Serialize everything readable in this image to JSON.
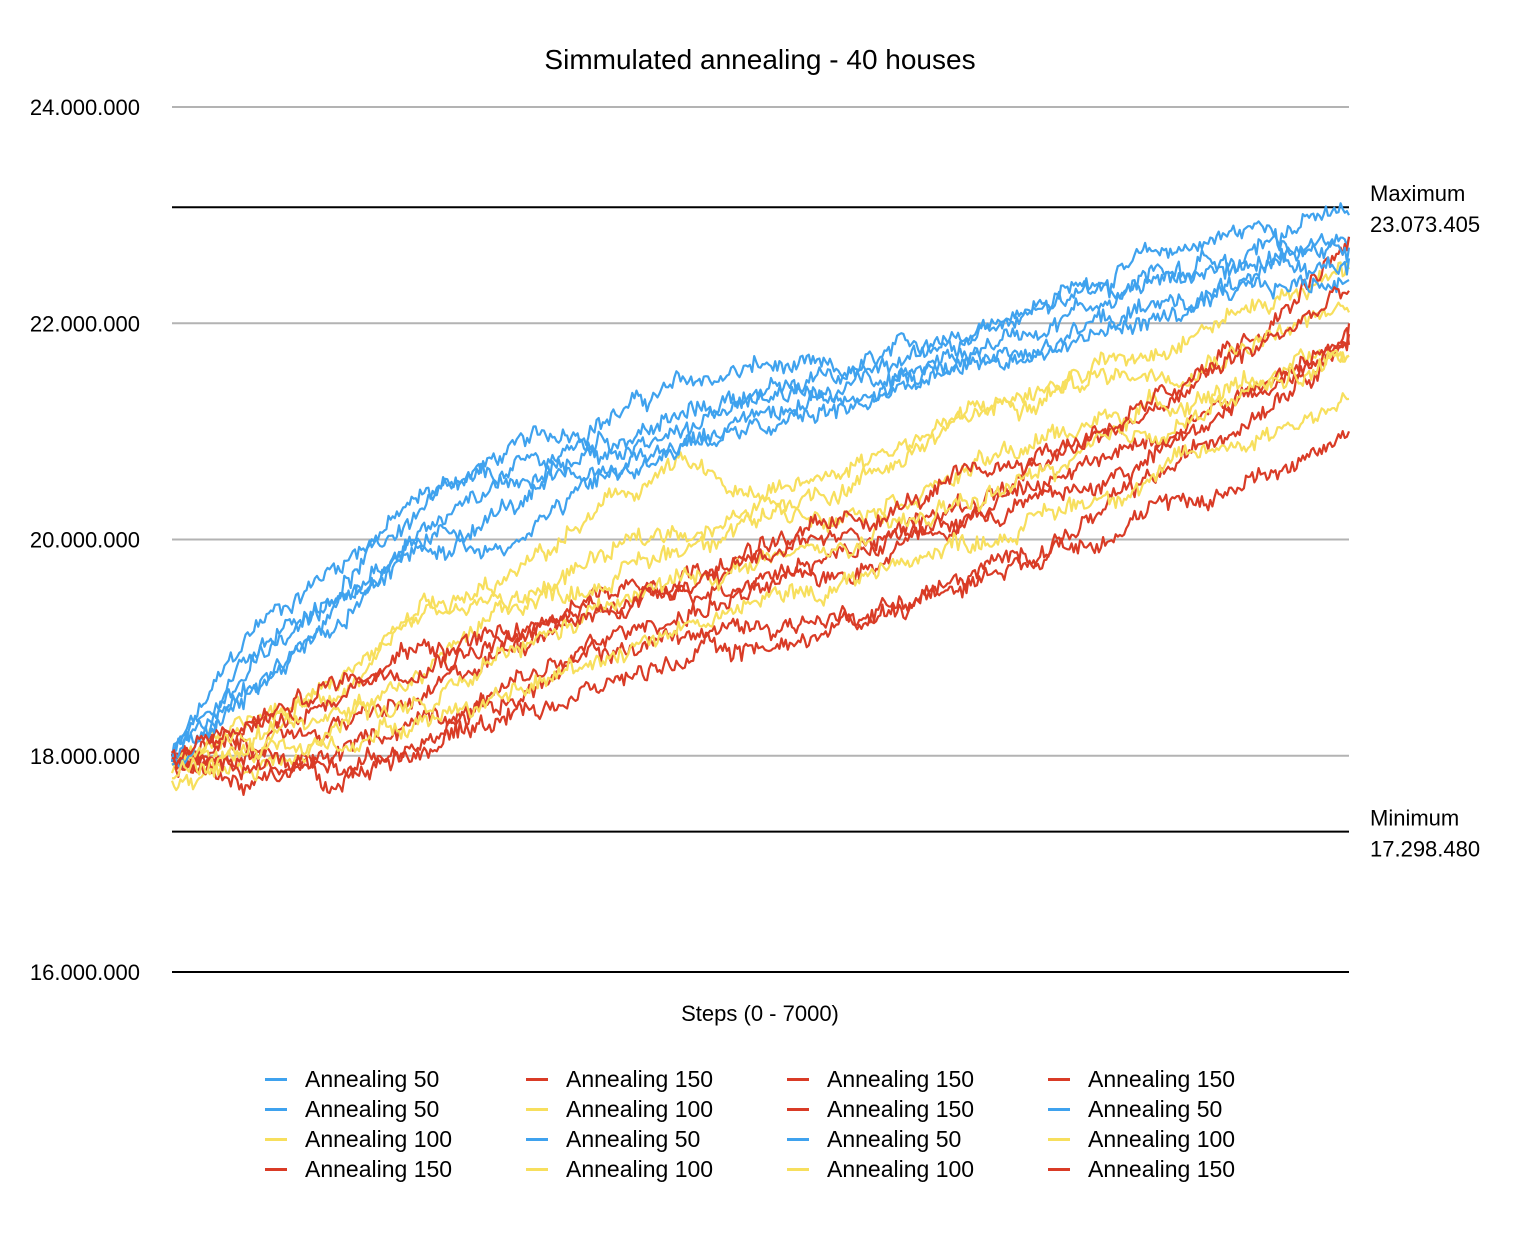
{
  "chart_data": {
    "type": "line",
    "title": "Simmulated annealing - 40 houses",
    "xlabel": "Steps (0 - 7000)",
    "ylabel": "",
    "xlim": [
      0,
      7000
    ],
    "ylim": [
      16000000,
      24000000
    ],
    "y_ticks": [
      {
        "value": 16000000,
        "label": "16.000.000"
      },
      {
        "value": 18000000,
        "label": "18.000.000"
      },
      {
        "value": 20000000,
        "label": "20.000.000"
      },
      {
        "value": 22000000,
        "label": "22.000.000"
      },
      {
        "value": 24000000,
        "label": "24.000.000"
      }
    ],
    "grid": true,
    "legend_position": "bottom",
    "reference_lines": [
      {
        "name": "maximum",
        "label": "Maximum",
        "value_label": "23.073.405",
        "value": 23073405
      },
      {
        "name": "minimum",
        "label": "Minimum",
        "value_label": "17.298.480",
        "value": 17298480
      }
    ],
    "colors": {
      "Annealing 50": "#3fa2ee",
      "Annealing 100": "#f7df5d",
      "Annealing 150": "#d93b26"
    },
    "series": [
      {
        "name": "Annealing 50",
        "color": "#3fa2ee",
        "x": [
          0,
          500,
          1000,
          1500,
          2000,
          2500,
          3000,
          3500,
          4000,
          4500,
          5000,
          5500,
          6000,
          6500,
          7000
        ],
        "values": [
          18000000,
          19200000,
          19800000,
          20400000,
          20800000,
          21100000,
          21400000,
          21600000,
          21500000,
          21800000,
          22100000,
          22400000,
          22700000,
          22900000,
          23000000
        ]
      },
      {
        "name": "Annealing 50",
        "color": "#3fa2ee",
        "x": [
          0,
          500,
          1000,
          1500,
          2000,
          2500,
          3000,
          3500,
          4000,
          4500,
          5000,
          5500,
          6000,
          6500,
          7000
        ],
        "values": [
          17950000,
          18900000,
          19600000,
          20300000,
          20600000,
          20900000,
          21100000,
          21400000,
          21300000,
          21600000,
          21900000,
          22200000,
          22500000,
          22600000,
          22800000
        ]
      },
      {
        "name": "Annealing 100",
        "color": "#f7df5d",
        "x": [
          0,
          500,
          1000,
          1500,
          2000,
          2500,
          3000,
          3500,
          4000,
          4500,
          5000,
          5500,
          6000,
          6500,
          7000
        ],
        "values": [
          17900000,
          18300000,
          18600000,
          19200000,
          19600000,
          20200000,
          20700000,
          20300000,
          20500000,
          20900000,
          21300000,
          21600000,
          21900000,
          22200000,
          22500000
        ]
      },
      {
        "name": "Annealing 150",
        "color": "#d93b26",
        "x": [
          0,
          500,
          1000,
          1500,
          2000,
          2500,
          3000,
          3500,
          4000,
          4500,
          5000,
          5500,
          6000,
          6500,
          7000
        ],
        "values": [
          17900000,
          18100000,
          18300000,
          18500000,
          19000000,
          19500000,
          19700000,
          19900000,
          20000000,
          20200000,
          20500000,
          20900000,
          21400000,
          22000000,
          22800000
        ]
      },
      {
        "name": "Annealing 150",
        "color": "#d93b26",
        "x": [
          0,
          500,
          1000,
          1500,
          2000,
          2500,
          3000,
          3500,
          4000,
          4500,
          5000,
          5500,
          6000,
          6500,
          7000
        ],
        "values": [
          18000000,
          17700000,
          18000000,
          18400000,
          18500000,
          18900000,
          19100000,
          19200000,
          19300000,
          19500000,
          19800000,
          20200000,
          20700000,
          21300000,
          21900000
        ]
      },
      {
        "name": "Annealing 100",
        "color": "#f7df5d",
        "x": [
          0,
          500,
          1000,
          1500,
          2000,
          2500,
          3000,
          3500,
          4000,
          4500,
          5000,
          5500,
          6000,
          6500,
          7000
        ],
        "values": [
          17850000,
          18100000,
          18700000,
          19300000,
          19400000,
          19600000,
          19900000,
          20300000,
          20700000,
          21000000,
          21300000,
          21500000,
          21600000,
          21900000,
          22100000
        ]
      },
      {
        "name": "Annealing 50",
        "color": "#3fa2ee",
        "x": [
          0,
          500,
          1000,
          1500,
          2000,
          2500,
          3000,
          3500,
          4000,
          4500,
          5000,
          5500,
          6000,
          6500,
          7000
        ],
        "values": [
          18050000,
          19000000,
          19500000,
          19900000,
          20300000,
          20600000,
          20900000,
          21000000,
          21200000,
          21500000,
          21700000,
          21900000,
          22100000,
          22300000,
          22400000
        ]
      },
      {
        "name": "Annealing 100",
        "color": "#f7df5d",
        "x": [
          0,
          500,
          1000,
          1500,
          2000,
          2500,
          3000,
          3500,
          4000,
          4500,
          5000,
          5500,
          6000,
          6500,
          7000
        ],
        "values": [
          17800000,
          17900000,
          18300000,
          18800000,
          19400000,
          19800000,
          20100000,
          20200000,
          20300000,
          20500000,
          20800000,
          21100000,
          21300000,
          21500000,
          21700000
        ]
      },
      {
        "name": "Annealing 150",
        "color": "#d93b26",
        "x": [
          0,
          500,
          1000,
          1500,
          2000,
          2500,
          3000,
          3500,
          4000,
          4500,
          5000,
          5500,
          6000,
          6500,
          7000
        ],
        "values": [
          17950000,
          18000000,
          17800000,
          18200000,
          18600000,
          19000000,
          19300000,
          19500000,
          19700000,
          20100000,
          20400000,
          20700000,
          21100000,
          21500000,
          21800000
        ]
      },
      {
        "name": "Annealing 150",
        "color": "#d93b26",
        "x": [
          0,
          500,
          1000,
          1500,
          2000,
          2500,
          3000,
          3500,
          4000,
          4500,
          5000,
          5500,
          6000,
          6500,
          7000
        ],
        "values": [
          18000000,
          18300000,
          18600000,
          19000000,
          19100000,
          19300000,
          19500000,
          19700000,
          19900000,
          20100000,
          20300000,
          20500000,
          20900000,
          21400000,
          22000000
        ]
      },
      {
        "name": "Annealing 50",
        "color": "#3fa2ee",
        "x": [
          0,
          500,
          1000,
          1500,
          2000,
          2500,
          3000,
          3500,
          4000,
          4500,
          5000,
          5500,
          6000,
          6500,
          7000
        ],
        "values": [
          17950000,
          18700000,
          19300000,
          20100000,
          20600000,
          20700000,
          21000000,
          21300000,
          21500000,
          21800000,
          22000000,
          22300000,
          22500000,
          22700000,
          22700000
        ]
      },
      {
        "name": "Annealing 100",
        "color": "#f7df5d",
        "x": [
          0,
          500,
          1000,
          1500,
          2000,
          2500,
          3000,
          3500,
          4000,
          4500,
          5000,
          5500,
          6000,
          6500,
          7000
        ],
        "values": [
          17900000,
          18200000,
          18500000,
          18400000,
          18900000,
          19300000,
          19600000,
          19800000,
          19900000,
          20200000,
          20500000,
          20800000,
          21100000,
          21400000,
          21700000
        ]
      },
      {
        "name": "Annealing 150",
        "color": "#d93b26",
        "x": [
          0,
          500,
          1000,
          1500,
          2000,
          2500,
          3000,
          3500,
          4000,
          4500,
          5000,
          5500,
          6000,
          6500,
          7000
        ],
        "values": [
          18000000,
          17900000,
          17900000,
          18100000,
          18400000,
          18600000,
          18900000,
          19000000,
          19200000,
          19500000,
          19800000,
          20100000,
          20300000,
          20600000,
          21000000
        ]
      },
      {
        "name": "Annealing 50",
        "color": "#3fa2ee",
        "x": [
          0,
          500,
          1000,
          1500,
          2000,
          2500,
          3000,
          3500,
          4000,
          4500,
          5000,
          5500,
          6000,
          6500,
          7000
        ],
        "values": [
          17900000,
          18600000,
          19400000,
          19900000,
          20000000,
          20500000,
          20800000,
          21200000,
          21400000,
          21500000,
          21700000,
          22000000,
          22200000,
          22400000,
          22600000
        ]
      },
      {
        "name": "Annealing 100",
        "color": "#f7df5d",
        "x": [
          0,
          500,
          1000,
          1500,
          2000,
          2500,
          3000,
          3500,
          4000,
          4500,
          5000,
          5500,
          6000,
          6500,
          7000
        ],
        "values": [
          17850000,
          18000000,
          18100000,
          18400000,
          18500000,
          18900000,
          19200000,
          19400000,
          19600000,
          19900000,
          20100000,
          20400000,
          20700000,
          21000000,
          21300000
        ]
      },
      {
        "name": "Annealing 150",
        "color": "#d93b26",
        "x": [
          0,
          500,
          1000,
          1500,
          2000,
          2500,
          3000,
          3500,
          4000,
          4500,
          5000,
          5500,
          6000,
          6500,
          7000
        ],
        "values": [
          17950000,
          18300000,
          18700000,
          18900000,
          19100000,
          19300000,
          19600000,
          19900000,
          20100000,
          20400000,
          20700000,
          21000000,
          21400000,
          21800000,
          22300000
        ]
      }
    ]
  }
}
